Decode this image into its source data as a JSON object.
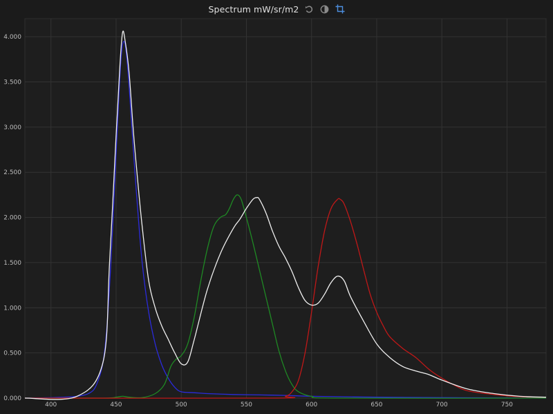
{
  "window": {
    "title": "Spectrum mW/sr/m2",
    "icons": [
      "reset-icon",
      "contrast-icon",
      "crop-icon"
    ],
    "accent": "#4d8fe0"
  },
  "chart_data": {
    "type": "line",
    "title": "Spectrum mW/sr/m2",
    "xlabel": "",
    "ylabel": "",
    "xlim": [
      380,
      780
    ],
    "ylim": [
      0,
      4.2
    ],
    "grid": true,
    "xticks": [
      400,
      450,
      500,
      550,
      600,
      650,
      700,
      750
    ],
    "yticks": [
      0,
      0.5,
      1.0,
      1.5,
      2.0,
      2.5,
      3.0,
      3.5,
      4.0
    ],
    "ytick_labels": [
      "0.000",
      "0.500",
      "1.000",
      "1.500",
      "2.000",
      "2.500",
      "3.000",
      "3.500",
      "4.000"
    ],
    "series": [
      {
        "color": "#2b2bdc",
        "x": [
          380,
          400,
          420,
          430,
          435,
          440,
          443,
          446,
          449,
          452,
          454,
          456,
          458,
          460,
          463,
          466,
          470,
          475,
          480,
          485,
          490,
          495,
          500,
          510,
          520,
          540,
          560,
          580,
          600,
          650,
          700,
          780
        ],
        "y": [
          0.0,
          0.005,
          0.02,
          0.06,
          0.15,
          0.4,
          0.8,
          1.5,
          2.4,
          3.3,
          3.8,
          3.95,
          3.8,
          3.45,
          2.8,
          2.2,
          1.5,
          0.95,
          0.6,
          0.37,
          0.22,
          0.12,
          0.07,
          0.06,
          0.05,
          0.04,
          0.035,
          0.03,
          0.02,
          0.01,
          0.005,
          0.0
        ]
      },
      {
        "color": "#1f8a24",
        "x": [
          380,
          440,
          450,
          455,
          460,
          470,
          480,
          487,
          492,
          496,
          500,
          505,
          510,
          515,
          520,
          525,
          530,
          534,
          537,
          540,
          543,
          546,
          550,
          555,
          560,
          565,
          570,
          575,
          580,
          585,
          590,
          600,
          620,
          780
        ],
        "y": [
          0.0,
          0.0,
          0.01,
          0.02,
          0.01,
          0.005,
          0.05,
          0.15,
          0.35,
          0.43,
          0.47,
          0.6,
          0.9,
          1.3,
          1.65,
          1.9,
          2.0,
          2.03,
          2.1,
          2.2,
          2.25,
          2.2,
          2.0,
          1.72,
          1.42,
          1.12,
          0.82,
          0.52,
          0.3,
          0.15,
          0.07,
          0.02,
          0.0,
          0.0
        ]
      },
      {
        "color": "#c01818",
        "x": [
          380,
          570,
          580,
          585,
          590,
          595,
          600,
          605,
          610,
          615,
          620,
          622,
          625,
          630,
          635,
          640,
          645,
          650,
          655,
          660,
          670,
          680,
          690,
          700,
          710,
          720,
          740,
          760,
          780
        ],
        "y": [
          0.0,
          0.0,
          0.02,
          0.07,
          0.2,
          0.5,
          0.95,
          1.45,
          1.85,
          2.1,
          2.2,
          2.2,
          2.15,
          1.95,
          1.7,
          1.42,
          1.15,
          0.95,
          0.8,
          0.68,
          0.55,
          0.45,
          0.32,
          0.22,
          0.14,
          0.08,
          0.04,
          0.015,
          0.01
        ]
      },
      {
        "color": "#f0f0f0",
        "x": [
          380,
          420,
          440,
          445,
          450,
          453,
          455,
          457,
          460,
          463,
          466,
          470,
          475,
          480,
          485,
          490,
          495,
          500,
          505,
          510,
          520,
          530,
          540,
          545,
          550,
          555,
          558,
          560,
          565,
          570,
          575,
          580,
          585,
          590,
          595,
          600,
          605,
          610,
          615,
          620,
          625,
          630,
          640,
          650,
          660,
          670,
          680,
          690,
          700,
          720,
          740,
          760,
          780
        ],
        "y": [
          0.0,
          0.02,
          0.4,
          1.5,
          2.9,
          3.7,
          4.05,
          3.95,
          3.6,
          3.0,
          2.5,
          1.9,
          1.3,
          1.0,
          0.8,
          0.65,
          0.5,
          0.38,
          0.4,
          0.65,
          1.2,
          1.6,
          1.88,
          1.98,
          2.1,
          2.2,
          2.22,
          2.2,
          2.05,
          1.85,
          1.68,
          1.55,
          1.4,
          1.22,
          1.08,
          1.03,
          1.05,
          1.15,
          1.28,
          1.35,
          1.3,
          1.12,
          0.85,
          0.6,
          0.45,
          0.35,
          0.3,
          0.26,
          0.2,
          0.1,
          0.05,
          0.02,
          0.01
        ]
      }
    ]
  }
}
